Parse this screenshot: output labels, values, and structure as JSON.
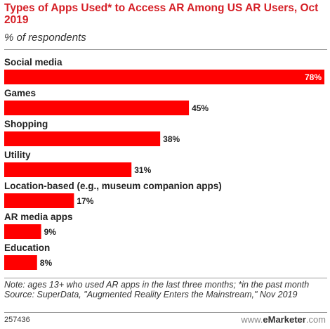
{
  "header": {
    "title": "Types of Apps Used* to Access AR Among US AR Users, Oct 2019",
    "subtitle": "% of respondents"
  },
  "chart_data": {
    "type": "bar",
    "orientation": "horizontal",
    "categories": [
      "Social media",
      "Games",
      "Shopping",
      "Utility",
      "Location-based (e.g., museum companion apps)",
      "AR media apps",
      "Education"
    ],
    "values": [
      78,
      45,
      38,
      31,
      17,
      9,
      8
    ],
    "value_labels": [
      "78%",
      "45%",
      "38%",
      "31%",
      "17%",
      "9%",
      "8%"
    ],
    "bar_color": "#ff0000",
    "xlim": [
      0,
      78
    ]
  },
  "footer": {
    "note": "Note: ages 13+ who used AR apps in the last three months; *in the past month",
    "source": "Source: SuperData, \"Augmented Reality Enters the Mainstream,\" Nov 2019",
    "chart_id": "257436",
    "brand_prefix": "www.",
    "brand_name": "eMarketer",
    "brand_suffix": ".com"
  }
}
